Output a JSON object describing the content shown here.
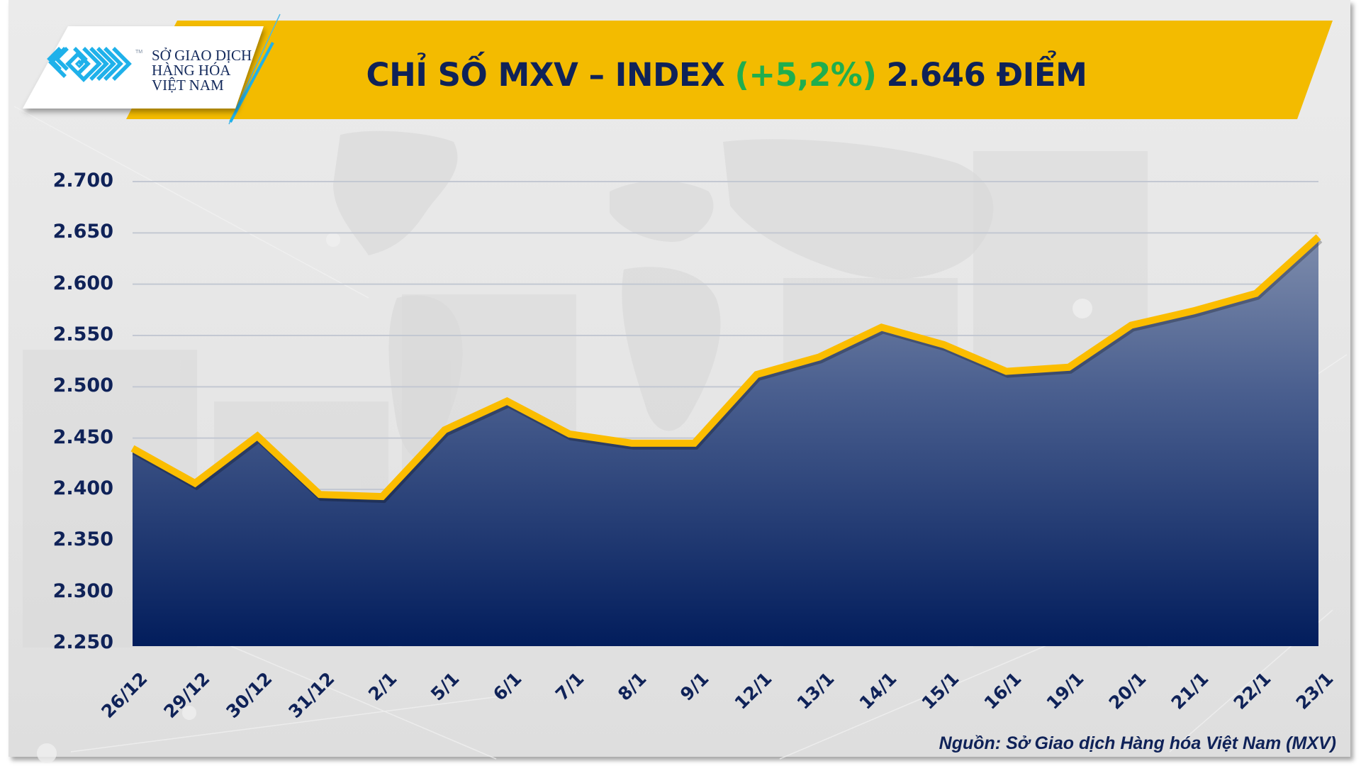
{
  "header": {
    "logo": {
      "icon": "mxv-maze-logo-icon",
      "trademark": "TM",
      "lines": [
        "SỞ GIAO DỊCH",
        "HÀNG HÓA",
        "VIỆT NAM"
      ]
    },
    "title_main": "CHỈ SỐ MXV – INDEX",
    "title_change": "(+5,2%)",
    "title_value": "2.646 ĐIỂM"
  },
  "colors": {
    "banner_yellow": "#f3bb00",
    "title_navy": "#0f2258",
    "change_green": "#1fae4e",
    "line_yellow": "#fbbd00",
    "area_top": "#8a97b3",
    "area_bottom": "#021d5c",
    "logo_blue": "#1fb1ea"
  },
  "chart_data": {
    "type": "area",
    "title": "CHỈ SỐ MXV – INDEX (+5,2%) 2.646 ĐIỂM",
    "xlabel": "",
    "ylabel": "",
    "categories": [
      "26/12",
      "29/12",
      "30/12",
      "31/12",
      "2/1",
      "5/1",
      "6/1",
      "7/1",
      "8/1",
      "9/1",
      "12/1",
      "13/1",
      "14/1",
      "15/1",
      "16/1",
      "19/1",
      "20/1",
      "21/1",
      "22/1",
      "23/1"
    ],
    "values": [
      2440,
      2406,
      2452,
      2395,
      2393,
      2458,
      2486,
      2454,
      2445,
      2445,
      2512,
      2529,
      2558,
      2541,
      2515,
      2519,
      2560,
      2574,
      2591,
      2646
    ],
    "ylim": [
      2250,
      2700
    ],
    "yticks": [
      "2.700",
      "2.650",
      "2.600",
      "2.550",
      "2.500",
      "2.450",
      "2.400",
      "2.350",
      "2.300",
      "2.250"
    ],
    "ytick_values": [
      2700,
      2650,
      2600,
      2550,
      2500,
      2450,
      2400,
      2350,
      2300,
      2250
    ],
    "grid": true,
    "legend": "none"
  },
  "footer": {
    "source": "Nguồn: Sở Giao dịch Hàng hóa Việt Nam (MXV)"
  }
}
